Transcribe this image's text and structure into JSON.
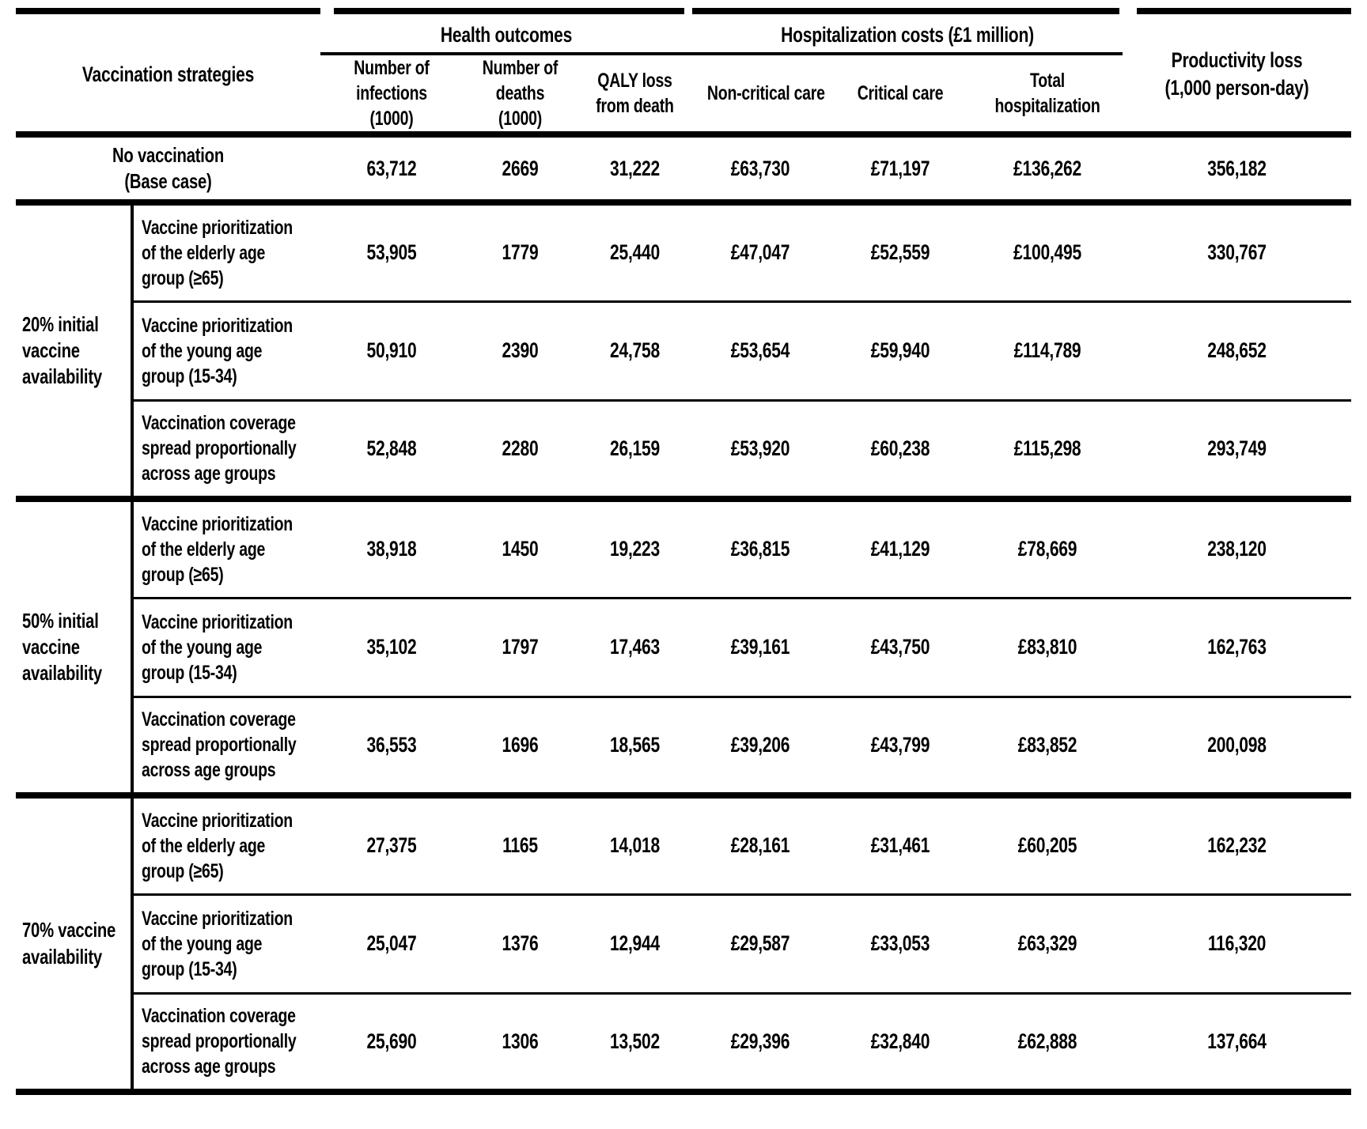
{
  "header": {
    "strategies": "Vaccination strategies",
    "health_outcomes": "Health outcomes",
    "hospitalization_costs": "Hospitalization costs (£1 million)",
    "productivity_loss": "Productivity loss\n(1,000 person-day)",
    "sub": {
      "infections": "Number of\ninfections\n(1000)",
      "deaths": "Number of\ndeaths\n(1000)",
      "qaly": "QALY loss\nfrom death",
      "noncritical": "Non-critical care",
      "critical": "Critical care",
      "total_hosp": "Total\nhospitalization"
    }
  },
  "base_case": {
    "label": "No vaccination\n(Base case)",
    "values": [
      "63,712",
      "2669",
      "31,222",
      "£63,730",
      "£71,197",
      "£136,262",
      "356,182"
    ]
  },
  "sections": [
    {
      "group": "20% initial\nvaccine\navailability",
      "rows": [
        {
          "strategy": "Vaccine prioritization\nof the elderly age\ngroup (≥65)",
          "values": [
            "53,905",
            "1779",
            "25,440",
            "£47,047",
            "£52,559",
            "£100,495",
            "330,767"
          ]
        },
        {
          "strategy": "Vaccine prioritization\nof the young age\ngroup (15-34)",
          "values": [
            "50,910",
            "2390",
            "24,758",
            "£53,654",
            "£59,940",
            "£114,789",
            "248,652"
          ]
        },
        {
          "strategy": "Vaccination coverage\nspread proportionally\nacross age groups",
          "values": [
            "52,848",
            "2280",
            "26,159",
            "£53,920",
            "£60,238",
            "£115,298",
            "293,749"
          ]
        }
      ]
    },
    {
      "group": "50% initial\nvaccine\navailability",
      "rows": [
        {
          "strategy": "Vaccine prioritization\nof the elderly age\ngroup (≥65)",
          "values": [
            "38,918",
            "1450",
            "19,223",
            "£36,815",
            "£41,129",
            "£78,669",
            "238,120"
          ]
        },
        {
          "strategy": "Vaccine prioritization\nof the young age\ngroup (15-34)",
          "values": [
            "35,102",
            "1797",
            "17,463",
            "£39,161",
            "£43,750",
            "£83,810",
            "162,763"
          ]
        },
        {
          "strategy": "Vaccination coverage\nspread proportionally\nacross age groups",
          "values": [
            "36,553",
            "1696",
            "18,565",
            "£39,206",
            "£43,799",
            "£83,852",
            "200,098"
          ]
        }
      ]
    },
    {
      "group": "70% vaccine\navailability",
      "rows": [
        {
          "strategy": "Vaccine prioritization\nof the elderly age\ngroup (≥65)",
          "values": [
            "27,375",
            "1165",
            "14,018",
            "£28,161",
            "£31,461",
            "£60,205",
            "162,232"
          ]
        },
        {
          "strategy": "Vaccine prioritization\nof the young age\ngroup (15-34)",
          "values": [
            "25,047",
            "1376",
            "12,944",
            "£29,587",
            "£33,053",
            "£63,329",
            "116,320"
          ]
        },
        {
          "strategy": "Vaccination coverage\nspread proportionally\nacross age groups",
          "values": [
            "25,690",
            "1306",
            "13,502",
            "£29,396",
            "£32,840",
            "£62,888",
            "137,664"
          ]
        }
      ]
    }
  ]
}
